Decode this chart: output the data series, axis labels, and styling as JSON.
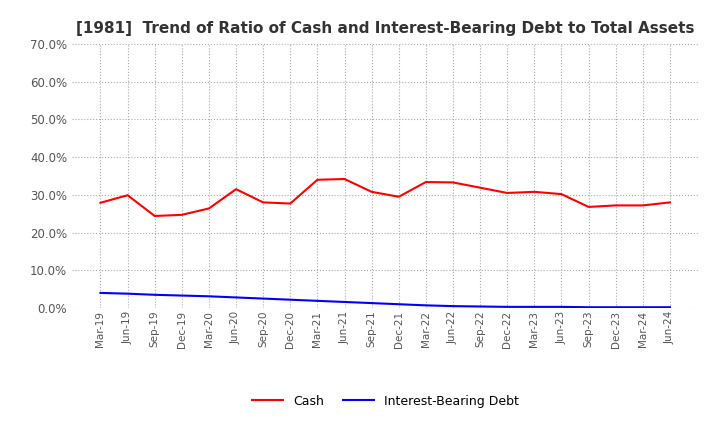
{
  "title": "[1981]  Trend of Ratio of Cash and Interest-Bearing Debt to Total Assets",
  "x_labels": [
    "Mar-19",
    "Jun-19",
    "Sep-19",
    "Dec-19",
    "Mar-20",
    "Jun-20",
    "Sep-20",
    "Dec-20",
    "Mar-21",
    "Jun-21",
    "Sep-21",
    "Dec-21",
    "Mar-22",
    "Jun-22",
    "Sep-22",
    "Dec-22",
    "Mar-23",
    "Jun-23",
    "Sep-23",
    "Dec-23",
    "Mar-24",
    "Jun-24"
  ],
  "cash": [
    0.279,
    0.299,
    0.244,
    0.247,
    0.264,
    0.315,
    0.28,
    0.277,
    0.34,
    0.342,
    0.308,
    0.295,
    0.334,
    0.333,
    0.319,
    0.305,
    0.308,
    0.302,
    0.268,
    0.272,
    0.272,
    0.28
  ],
  "interest_bearing_debt": [
    0.04,
    0.038,
    0.035,
    0.033,
    0.031,
    0.028,
    0.025,
    0.022,
    0.019,
    0.016,
    0.013,
    0.01,
    0.007,
    0.005,
    0.004,
    0.003,
    0.003,
    0.003,
    0.002,
    0.002,
    0.002,
    0.002
  ],
  "cash_color": "#ff0000",
  "ibd_color": "#0000ff",
  "ylim": [
    0.0,
    0.7
  ],
  "yticks": [
    0.0,
    0.1,
    0.2,
    0.3,
    0.4,
    0.5,
    0.6,
    0.7
  ],
  "background_color": "#ffffff",
  "grid_color": "#aaaaaa",
  "title_fontsize": 11,
  "legend_labels": [
    "Cash",
    "Interest-Bearing Debt"
  ]
}
